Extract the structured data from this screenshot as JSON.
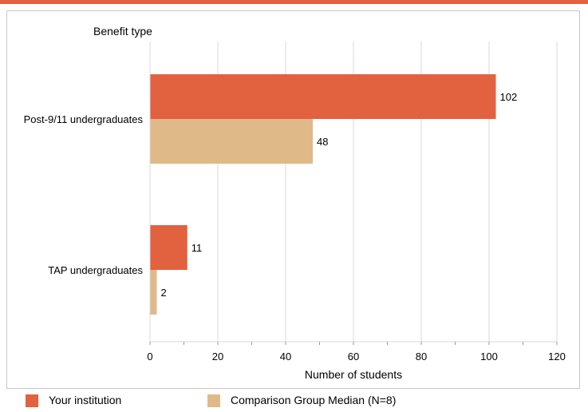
{
  "colors": {
    "accent_rule": "#e2613f",
    "your_institution": "#e2613f",
    "comparison": "#dfba88",
    "grid": "#d9d9d9",
    "frame": "#c8c8c8"
  },
  "chart_data": {
    "type": "bar",
    "orientation": "horizontal",
    "title": "",
    "category_axis_title": "Benefit type",
    "xlabel": "Number of students",
    "xlim": [
      0,
      120
    ],
    "xticks": [
      0,
      20,
      40,
      60,
      80,
      100,
      120
    ],
    "grid": true,
    "legend_position": "bottom",
    "categories": [
      "Post-9/11 undergraduates",
      "TAP undergraduates"
    ],
    "series": [
      {
        "name": "Your institution",
        "values": [
          102,
          11
        ]
      },
      {
        "name": "Comparison Group Median (N=8)",
        "values": [
          48,
          2
        ]
      }
    ]
  }
}
